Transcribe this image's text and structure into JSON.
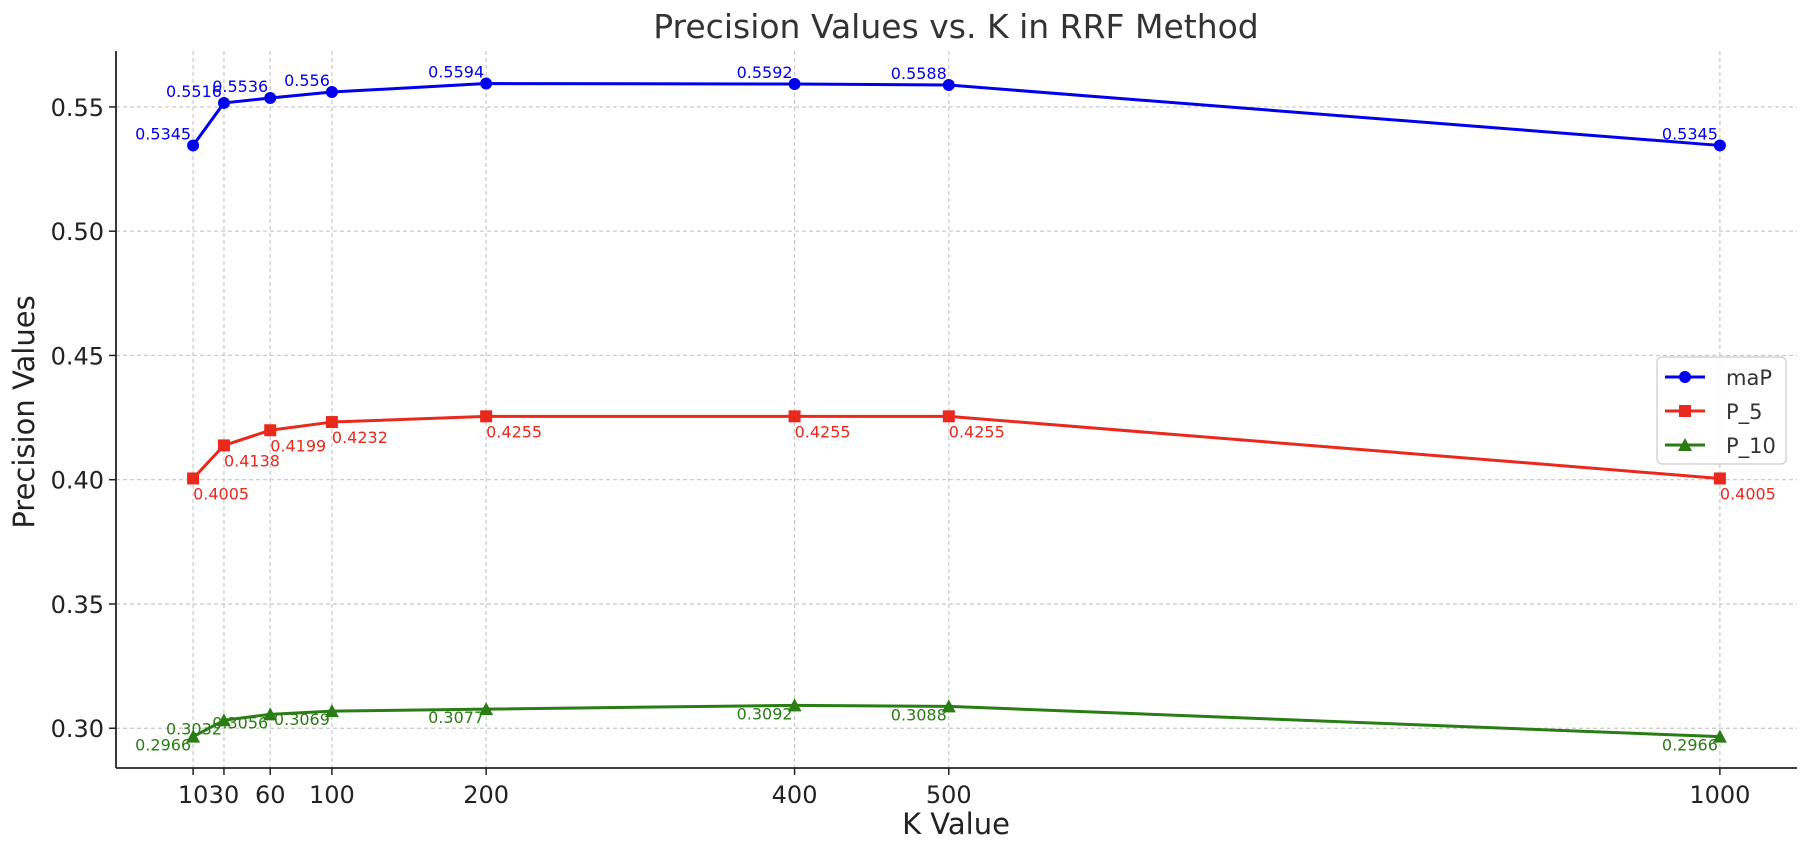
{
  "chart_data": {
    "type": "line",
    "title": "Precision Values vs. K in RRF Method",
    "xlabel": "K Value",
    "ylabel": "Precision Values",
    "x": [
      10,
      30,
      60,
      100,
      200,
      400,
      500,
      1000
    ],
    "x_ticks": [
      "10",
      "30",
      "60",
      "100",
      "200",
      "400",
      "500",
      "1000"
    ],
    "y_ticks": [
      "0.30",
      "0.35",
      "0.40",
      "0.45",
      "0.50",
      "0.55"
    ],
    "xlim": [
      -40,
      1050
    ],
    "ylim": [
      0.284,
      0.5725
    ],
    "grid": true,
    "legend_position": "center-right",
    "series": [
      {
        "name": "maP",
        "marker": "circle",
        "color": "#0000ee",
        "values": [
          0.5345,
          0.5516,
          0.5536,
          0.556,
          0.5594,
          0.5592,
          0.5588,
          0.5345
        ],
        "labels": [
          "0.5345",
          "0.5516",
          "0.5536",
          "0.556",
          "0.5594",
          "0.5592",
          "0.5588",
          "0.5345"
        ]
      },
      {
        "name": "P_5",
        "marker": "square",
        "color": "#e8291c",
        "values": [
          0.4005,
          0.4138,
          0.4199,
          0.4232,
          0.4255,
          0.4255,
          0.4255,
          0.4005
        ],
        "labels": [
          "0.4005",
          "0.4138",
          "0.4199",
          "0.4232",
          "0.4255",
          "0.4255",
          "0.4255",
          "0.4005"
        ]
      },
      {
        "name": "P_10",
        "marker": "triangle",
        "color": "#2a7d14",
        "values": [
          0.2966,
          0.3032,
          0.3056,
          0.3069,
          0.3077,
          0.3092,
          0.3088,
          0.2966
        ],
        "labels": [
          "0.2966",
          "0.3032",
          "0.3056",
          "0.3069",
          "0.3077",
          "0.3092",
          "0.3088",
          "0.2966"
        ]
      }
    ]
  }
}
